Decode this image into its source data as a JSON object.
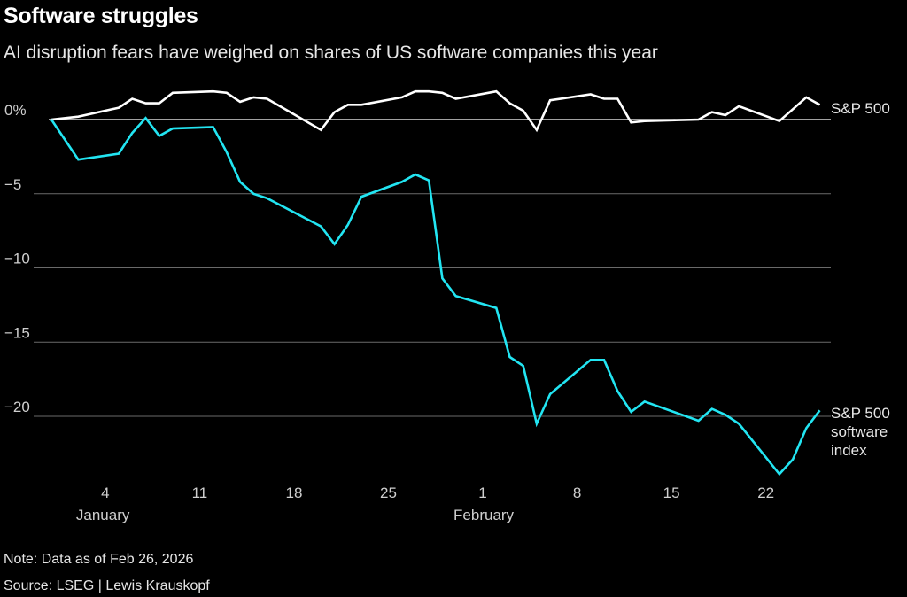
{
  "chart_data": {
    "type": "line",
    "title": "Software struggles",
    "subtitle": "AI disruption fears have weighed on shares of US software companies this year",
    "note": "Note: Data as of Feb 26, 2026",
    "source": "Source: LSEG | Lewis Krauskopf",
    "ylim": [
      -25,
      2.5
    ],
    "yticks": [
      0,
      -5,
      -10,
      -15,
      -20
    ],
    "ytick_labels": [
      "0%",
      "−5",
      "−10",
      "−15",
      "−20"
    ],
    "xlim": [
      "2025-12-31",
      "2026-02-26"
    ],
    "xticks": [
      "2026-01-04",
      "2026-01-11",
      "2026-01-18",
      "2026-01-25",
      "2026-02-01",
      "2026-02-08",
      "2026-02-15",
      "2026-02-22"
    ],
    "xtick_labels": [
      "4",
      "11",
      "18",
      "25",
      "1",
      "8",
      "15",
      "22"
    ],
    "month_labels": [
      {
        "date": "2026-01-04",
        "label": "January"
      },
      {
        "date": "2026-02-01",
        "label": "February"
      }
    ],
    "grid": true,
    "x": [
      "2025-12-31",
      "2026-01-02",
      "2026-01-05",
      "2026-01-06",
      "2026-01-07",
      "2026-01-08",
      "2026-01-09",
      "2026-01-12",
      "2026-01-13",
      "2026-01-14",
      "2026-01-15",
      "2026-01-16",
      "2026-01-20",
      "2026-01-21",
      "2026-01-22",
      "2026-01-23",
      "2026-01-26",
      "2026-01-27",
      "2026-01-28",
      "2026-01-29",
      "2026-01-30",
      "2026-02-02",
      "2026-02-03",
      "2026-02-04",
      "2026-02-05",
      "2026-02-06",
      "2026-02-09",
      "2026-02-10",
      "2026-02-11",
      "2026-02-12",
      "2026-02-13",
      "2026-02-17",
      "2026-02-18",
      "2026-02-19",
      "2026-02-20",
      "2026-02-23",
      "2026-02-24",
      "2026-02-25",
      "2026-02-26"
    ],
    "series": [
      {
        "name": "S&P 500",
        "label_lines": [
          "S&P 500"
        ],
        "color": "#ffffff",
        "values": [
          0,
          0.2,
          0.8,
          1.4,
          1.1,
          1.1,
          1.8,
          1.9,
          1.8,
          1.2,
          1.5,
          1.4,
          -0.7,
          0.5,
          1.0,
          1.0,
          1.5,
          1.9,
          1.9,
          1.8,
          1.4,
          1.9,
          1.1,
          0.6,
          -0.7,
          1.3,
          1.7,
          1.4,
          1.4,
          -0.2,
          -0.1,
          0.0,
          0.5,
          0.3,
          0.9,
          -0.1,
          0.7,
          1.5,
          1.0
        ]
      },
      {
        "name": "S&P 500 software index",
        "label_lines": [
          "S&P 500",
          "software",
          "index"
        ],
        "color": "#22e5f2",
        "values": [
          0,
          -2.7,
          -2.3,
          -0.9,
          0.1,
          -1.1,
          -0.6,
          -0.5,
          -2.2,
          -4.2,
          -5.0,
          -5.3,
          -7.2,
          -8.4,
          -7.1,
          -5.2,
          -4.2,
          -3.7,
          -4.1,
          -10.7,
          -11.9,
          -12.7,
          -16.0,
          -16.6,
          -20.5,
          -18.5,
          -16.2,
          -16.2,
          -18.3,
          -19.7,
          -19.0,
          -20.3,
          -19.5,
          -19.9,
          -20.5,
          -23.9,
          -22.9,
          -20.8,
          -19.6
        ]
      }
    ]
  }
}
